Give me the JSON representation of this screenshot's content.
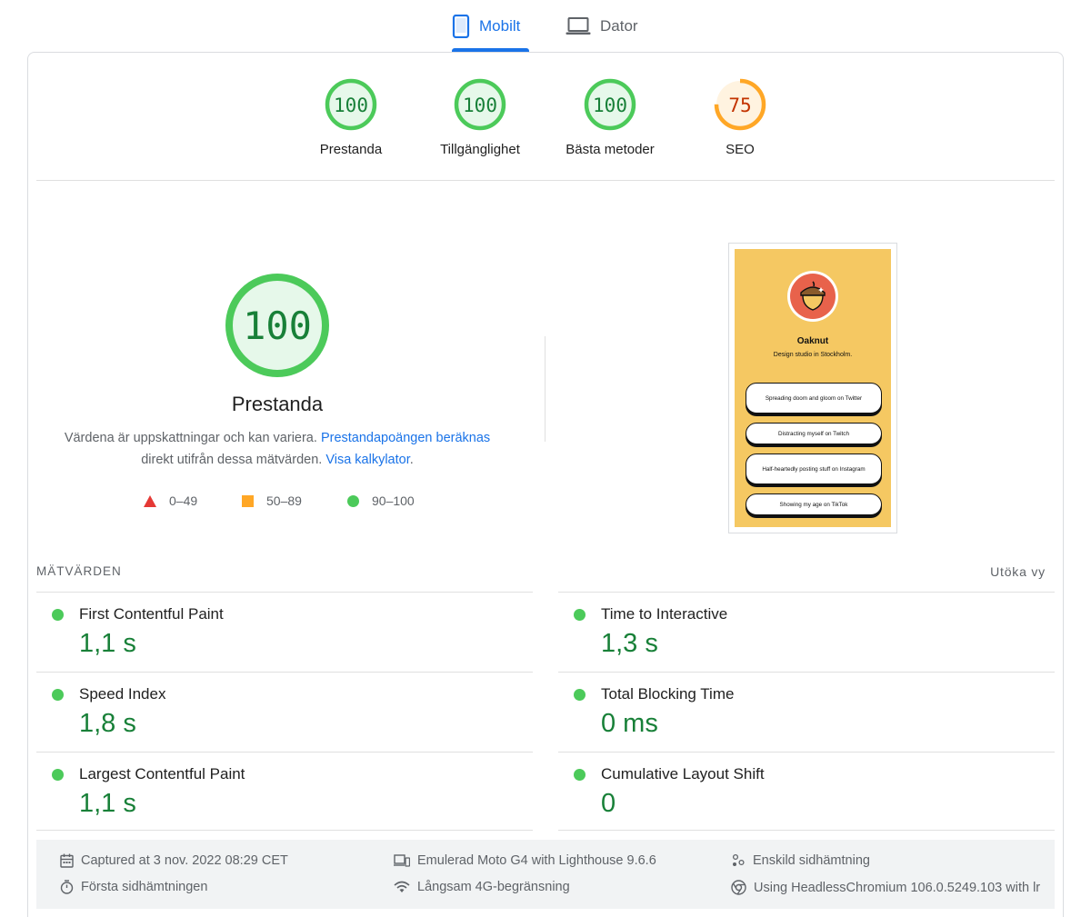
{
  "tabs": [
    {
      "label": "Mobilt",
      "icon": "phone-icon",
      "active": true
    },
    {
      "label": "Dator",
      "icon": "laptop-icon",
      "active": false
    }
  ],
  "colors": {
    "pass": "#4cca5a",
    "pass_text": "#188038",
    "average": "#ffa726",
    "average_text": "#c33300",
    "fail": "#e53935",
    "accent": "#1a73e8"
  },
  "categories": [
    {
      "score": "100",
      "score_value": 100,
      "label": "Prestanda",
      "rating": "pass"
    },
    {
      "score": "100",
      "score_value": 100,
      "label": "Tillgänglighet",
      "rating": "pass"
    },
    {
      "score": "100",
      "score_value": 100,
      "label": "Bästa metoder",
      "rating": "pass"
    },
    {
      "score": "75",
      "score_value": 75,
      "label": "SEO",
      "rating": "average"
    }
  ],
  "performance": {
    "score": "100",
    "score_value": 100,
    "title": "Prestanda",
    "desc_text_1": "Värdena är uppskattningar och kan variera.",
    "desc_link_1": "Prestandapoängen beräknas",
    "desc_text_2": "direkt utifrån dessa mätvärden.",
    "desc_link_2": "Visa kalkylator",
    "desc_text_3": "."
  },
  "legend": [
    {
      "range": "0–49",
      "shape": "triangle"
    },
    {
      "range": "50–89",
      "shape": "square"
    },
    {
      "range": "90–100",
      "shape": "circle"
    }
  ],
  "preview": {
    "name": "Oaknut",
    "subtitle": "Design studio in Stockholm.",
    "avatar_icon": "acorn-icon",
    "links": [
      "Spreading doom and gloom on Twitter",
      "Distracting myself on Twitch",
      "Half-heartedly posting stuff on Instagram",
      "Showing my age on TikTok"
    ]
  },
  "metrics": {
    "heading": "MÄTVÄRDEN",
    "expand_label": "Utöka vy",
    "left": [
      {
        "name": "First Contentful Paint",
        "value": "1,1 s"
      },
      {
        "name": "Speed Index",
        "value": "1,8 s"
      },
      {
        "name": "Largest Contentful Paint",
        "value": "1,1 s"
      }
    ],
    "right": [
      {
        "name": "Time to Interactive",
        "value": "1,3 s"
      },
      {
        "name": "Total Blocking Time",
        "value": "0 ms"
      },
      {
        "name": "Cumulative Layout Shift",
        "value": "0"
      }
    ]
  },
  "footer": {
    "captured": "Captured at 3 nov. 2022 08:29 CET",
    "first_load": "Första sidhämtningen",
    "emulated": "Emulerad Moto G4 with Lighthouse 9.6.6",
    "throttling": "Långsam 4G-begränsning",
    "single_load": "Enskild sidhämtning",
    "browser": "Using HeadlessChromium 106.0.5249.103 with lr"
  }
}
